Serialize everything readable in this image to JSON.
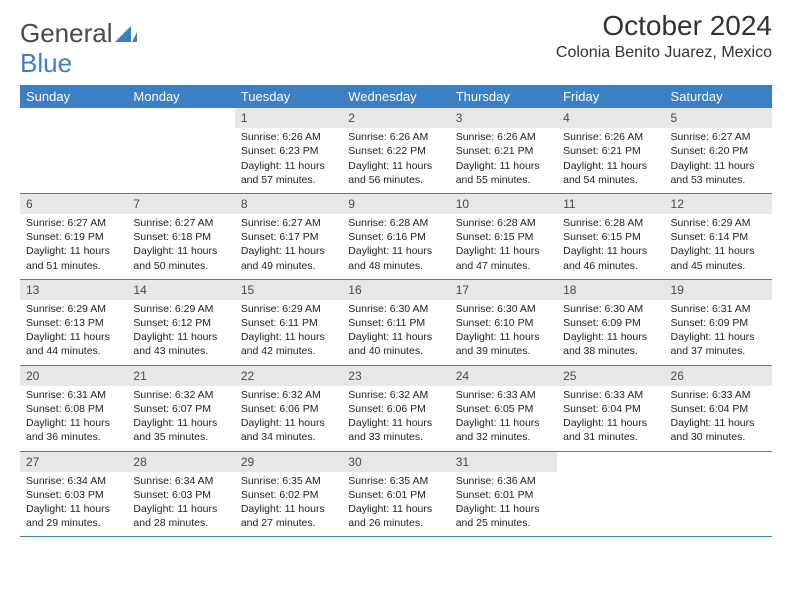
{
  "logo": {
    "word1": "General",
    "word2": "Blue"
  },
  "header": {
    "title": "October 2024",
    "location": "Colonia Benito Juarez, Mexico"
  },
  "colors": {
    "header_bg": "#3b7fc4",
    "header_text": "#ffffff",
    "daynum_bg": "#e6e7e8",
    "row_border": "#3b7fc4",
    "body_text": "#222222",
    "page_bg": "#ffffff"
  },
  "columns": [
    "Sunday",
    "Monday",
    "Tuesday",
    "Wednesday",
    "Thursday",
    "Friday",
    "Saturday"
  ],
  "weeks": [
    [
      {
        "blank": true
      },
      {
        "blank": true
      },
      {
        "day": "1",
        "sunrise": "6:26 AM",
        "sunset": "6:23 PM",
        "daylight": "11 hours and 57 minutes."
      },
      {
        "day": "2",
        "sunrise": "6:26 AM",
        "sunset": "6:22 PM",
        "daylight": "11 hours and 56 minutes."
      },
      {
        "day": "3",
        "sunrise": "6:26 AM",
        "sunset": "6:21 PM",
        "daylight": "11 hours and 55 minutes."
      },
      {
        "day": "4",
        "sunrise": "6:26 AM",
        "sunset": "6:21 PM",
        "daylight": "11 hours and 54 minutes."
      },
      {
        "day": "5",
        "sunrise": "6:27 AM",
        "sunset": "6:20 PM",
        "daylight": "11 hours and 53 minutes."
      }
    ],
    [
      {
        "day": "6",
        "sunrise": "6:27 AM",
        "sunset": "6:19 PM",
        "daylight": "11 hours and 51 minutes."
      },
      {
        "day": "7",
        "sunrise": "6:27 AM",
        "sunset": "6:18 PM",
        "daylight": "11 hours and 50 minutes."
      },
      {
        "day": "8",
        "sunrise": "6:27 AM",
        "sunset": "6:17 PM",
        "daylight": "11 hours and 49 minutes."
      },
      {
        "day": "9",
        "sunrise": "6:28 AM",
        "sunset": "6:16 PM",
        "daylight": "11 hours and 48 minutes."
      },
      {
        "day": "10",
        "sunrise": "6:28 AM",
        "sunset": "6:15 PM",
        "daylight": "11 hours and 47 minutes."
      },
      {
        "day": "11",
        "sunrise": "6:28 AM",
        "sunset": "6:15 PM",
        "daylight": "11 hours and 46 minutes."
      },
      {
        "day": "12",
        "sunrise": "6:29 AM",
        "sunset": "6:14 PM",
        "daylight": "11 hours and 45 minutes."
      }
    ],
    [
      {
        "day": "13",
        "sunrise": "6:29 AM",
        "sunset": "6:13 PM",
        "daylight": "11 hours and 44 minutes."
      },
      {
        "day": "14",
        "sunrise": "6:29 AM",
        "sunset": "6:12 PM",
        "daylight": "11 hours and 43 minutes."
      },
      {
        "day": "15",
        "sunrise": "6:29 AM",
        "sunset": "6:11 PM",
        "daylight": "11 hours and 42 minutes."
      },
      {
        "day": "16",
        "sunrise": "6:30 AM",
        "sunset": "6:11 PM",
        "daylight": "11 hours and 40 minutes."
      },
      {
        "day": "17",
        "sunrise": "6:30 AM",
        "sunset": "6:10 PM",
        "daylight": "11 hours and 39 minutes."
      },
      {
        "day": "18",
        "sunrise": "6:30 AM",
        "sunset": "6:09 PM",
        "daylight": "11 hours and 38 minutes."
      },
      {
        "day": "19",
        "sunrise": "6:31 AM",
        "sunset": "6:09 PM",
        "daylight": "11 hours and 37 minutes."
      }
    ],
    [
      {
        "day": "20",
        "sunrise": "6:31 AM",
        "sunset": "6:08 PM",
        "daylight": "11 hours and 36 minutes."
      },
      {
        "day": "21",
        "sunrise": "6:32 AM",
        "sunset": "6:07 PM",
        "daylight": "11 hours and 35 minutes."
      },
      {
        "day": "22",
        "sunrise": "6:32 AM",
        "sunset": "6:06 PM",
        "daylight": "11 hours and 34 minutes."
      },
      {
        "day": "23",
        "sunrise": "6:32 AM",
        "sunset": "6:06 PM",
        "daylight": "11 hours and 33 minutes."
      },
      {
        "day": "24",
        "sunrise": "6:33 AM",
        "sunset": "6:05 PM",
        "daylight": "11 hours and 32 minutes."
      },
      {
        "day": "25",
        "sunrise": "6:33 AM",
        "sunset": "6:04 PM",
        "daylight": "11 hours and 31 minutes."
      },
      {
        "day": "26",
        "sunrise": "6:33 AM",
        "sunset": "6:04 PM",
        "daylight": "11 hours and 30 minutes."
      }
    ],
    [
      {
        "day": "27",
        "sunrise": "6:34 AM",
        "sunset": "6:03 PM",
        "daylight": "11 hours and 29 minutes."
      },
      {
        "day": "28",
        "sunrise": "6:34 AM",
        "sunset": "6:03 PM",
        "daylight": "11 hours and 28 minutes."
      },
      {
        "day": "29",
        "sunrise": "6:35 AM",
        "sunset": "6:02 PM",
        "daylight": "11 hours and 27 minutes."
      },
      {
        "day": "30",
        "sunrise": "6:35 AM",
        "sunset": "6:01 PM",
        "daylight": "11 hours and 26 minutes."
      },
      {
        "day": "31",
        "sunrise": "6:36 AM",
        "sunset": "6:01 PM",
        "daylight": "11 hours and 25 minutes."
      },
      {
        "blank": true
      },
      {
        "blank": true
      }
    ]
  ],
  "labels": {
    "sunrise": "Sunrise:",
    "sunset": "Sunset:",
    "daylight": "Daylight:"
  }
}
